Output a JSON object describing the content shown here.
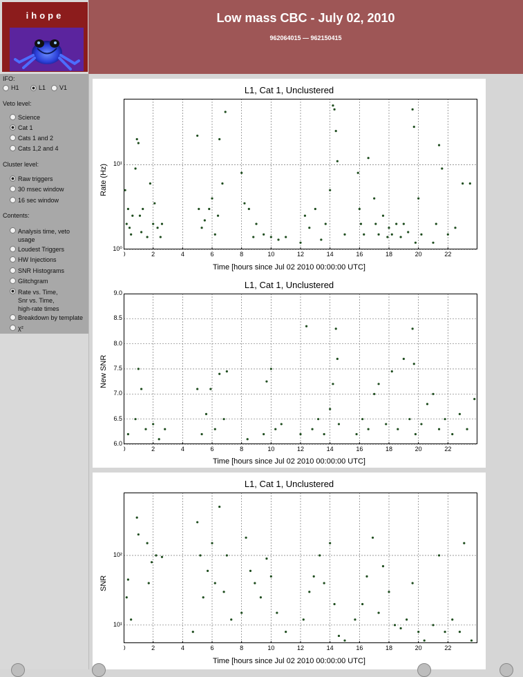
{
  "logo": {
    "title": "ihope"
  },
  "header": {
    "title": "Low mass CBC - July 02, 2010",
    "gps_range": "962064015 — 962150415"
  },
  "sidebar": {
    "ifo_label": "IFO:",
    "ifos": [
      {
        "label": "H1",
        "selected": false
      },
      {
        "label": "L1",
        "selected": true
      },
      {
        "label": "V1",
        "selected": false
      }
    ],
    "veto_label": "Veto level:",
    "veto": [
      {
        "label": "Science",
        "selected": false
      },
      {
        "label": "Cat 1",
        "selected": true
      },
      {
        "label": "Cats 1 and 2",
        "selected": false
      },
      {
        "label": "Cats 1,2 and 4",
        "selected": false
      }
    ],
    "cluster_label": "Cluster level:",
    "cluster": [
      {
        "label": "Raw triggers",
        "selected": true
      },
      {
        "label": "30 msec window",
        "selected": false
      },
      {
        "label": "16 sec window",
        "selected": false
      }
    ],
    "contents_label": "Contents:",
    "contents": [
      {
        "lines": [
          "Analysis time, veto",
          "usage"
        ],
        "selected": false
      },
      {
        "lines": [
          "Loudest Triggers"
        ],
        "selected": false
      },
      {
        "lines": [
          "HW Injections"
        ],
        "selected": false
      },
      {
        "lines": [
          "SNR Histograms"
        ],
        "selected": false
      },
      {
        "lines": [
          "Glitchgram"
        ],
        "selected": false
      },
      {
        "lines": [
          "Rate vs. Time,",
          "Snr vs. Time,",
          "high-rate times"
        ],
        "selected": true
      },
      {
        "lines": [
          "Breakdown by template"
        ],
        "selected": false
      },
      {
        "lines": [
          "χ²"
        ],
        "selected": false
      }
    ]
  },
  "chart_data": [
    {
      "type": "scatter",
      "title": "L1, Cat 1, Unclustered",
      "xlabel": "Time [hours since Jul 02 2010 00:00:00 UTC]",
      "ylabel": "Rate (Hz)",
      "xlim": [
        0,
        24
      ],
      "ylim": [
        1,
        60
      ],
      "yscale": "log",
      "xticks": [
        "0",
        "2",
        "4",
        "6",
        "8",
        "10",
        "12",
        "14",
        "16",
        "18",
        "20",
        "22"
      ],
      "yticks": [
        "10⁰",
        "10¹"
      ],
      "grid": true,
      "marker_color": "#1f4d1f",
      "series": [
        {
          "x": [
            0.1,
            0.2,
            0.3,
            0.4,
            0.5,
            0.6,
            0.8,
            0.9,
            1.0,
            1.1,
            1.2,
            1.3,
            1.6,
            1.8,
            2.0,
            2.1,
            2.3,
            2.5,
            2.6,
            5.0,
            5.1,
            5.3,
            5.5,
            5.8,
            6.0,
            6.2,
            6.4,
            6.5,
            6.7,
            6.9,
            8.0,
            8.2,
            8.5,
            8.8,
            9.0,
            9.5,
            10.0,
            10.5,
            11.0,
            12.0,
            12.3,
            12.6,
            13.0,
            13.4,
            13.7,
            14.0,
            14.2,
            14.3,
            14.4,
            14.5,
            15.0,
            15.9,
            16.0,
            16.1,
            16.3,
            16.6,
            17.0,
            17.1,
            17.3,
            17.6,
            17.9,
            18.0,
            18.2,
            18.5,
            18.8,
            19.0,
            19.3,
            19.6,
            19.7,
            19.8,
            20.0,
            20.2,
            21.0,
            21.2,
            21.4,
            21.6,
            22.0,
            22.5,
            23.0,
            23.5
          ],
          "y": [
            5,
            2,
            3,
            1.8,
            1.5,
            2.5,
            9,
            20,
            18,
            2.5,
            1.6,
            3,
            1.4,
            6,
            2,
            3.5,
            1.8,
            1.4,
            2,
            22,
            3,
            1.8,
            2.2,
            3,
            4,
            1.5,
            2.5,
            20,
            6,
            42,
            8,
            3.5,
            3,
            1.4,
            2,
            1.5,
            1.4,
            1.3,
            1.4,
            1.2,
            2.5,
            1.8,
            3,
            1.3,
            2,
            5,
            50,
            45,
            25,
            11,
            1.5,
            8,
            3,
            2,
            1.5,
            12,
            4,
            2,
            1.5,
            2.5,
            1.4,
            1.8,
            1.5,
            2,
            1.4,
            2,
            1.6,
            45,
            28,
            1.2,
            4,
            1.5,
            1.2,
            2,
            17,
            9,
            1.5,
            1.8,
            6,
            6
          ]
        }
      ]
    },
    {
      "type": "scatter",
      "title": "L1, Cat 1, Unclustered",
      "xlabel": "Time [hours since Jul 02 2010 00:00:00 UTC]",
      "ylabel": "New SNR",
      "xlim": [
        0,
        24
      ],
      "ylim": [
        6.0,
        9.0
      ],
      "xticks": [
        "0",
        "2",
        "4",
        "6",
        "8",
        "10",
        "12",
        "14",
        "16",
        "18",
        "20",
        "22"
      ],
      "yticks": [
        "6.0",
        "6.5",
        "7.0",
        "7.5",
        "8.0",
        "8.5",
        "9.0"
      ],
      "grid": true,
      "marker_color": "#1f4d1f",
      "series": [
        {
          "x": [
            0.3,
            0.8,
            1.0,
            1.2,
            1.5,
            2.0,
            2.4,
            2.8,
            5.0,
            5.3,
            5.6,
            5.9,
            6.2,
            6.5,
            6.8,
            7.0,
            8.4,
            9.5,
            9.7,
            10.0,
            10.3,
            10.7,
            12.0,
            12.4,
            12.8,
            13.2,
            13.6,
            14.0,
            14.2,
            14.4,
            14.5,
            14.6,
            15.8,
            16.2,
            16.6,
            17.0,
            17.3,
            17.8,
            18.2,
            18.6,
            19.0,
            19.4,
            19.6,
            19.7,
            19.8,
            20.2,
            20.6,
            21.0,
            21.4,
            21.8,
            22.3,
            22.8,
            23.3,
            23.8
          ],
          "y": [
            6.2,
            6.5,
            7.5,
            7.1,
            6.3,
            6.4,
            6.1,
            6.3,
            7.1,
            6.2,
            6.6,
            7.1,
            6.3,
            7.4,
            6.5,
            7.45,
            6.1,
            6.2,
            7.25,
            7.5,
            6.3,
            6.4,
            6.2,
            8.35,
            6.3,
            6.5,
            6.2,
            6.7,
            7.2,
            8.3,
            7.7,
            6.4,
            6.2,
            6.5,
            6.3,
            7.0,
            7.2,
            6.4,
            7.45,
            6.3,
            7.7,
            6.5,
            8.3,
            7.6,
            6.2,
            6.4,
            6.8,
            7.0,
            6.3,
            6.5,
            6.2,
            6.6,
            6.3,
            6.9
          ]
        }
      ]
    },
    {
      "type": "scatter",
      "title": "L1, Cat 1, Unclustered",
      "xlabel": "Time [hours since Jul 02 2010 00:00:00 UTC]",
      "ylabel": "SNR",
      "xlim": [
        0,
        24
      ],
      "ylim": [
        5.5,
        800
      ],
      "yscale": "log",
      "xticks": [
        "0",
        "2",
        "4",
        "6",
        "8",
        "10",
        "12",
        "14",
        "16",
        "18",
        "20",
        "22"
      ],
      "yticks": [
        "10¹",
        "10²"
      ],
      "grid": true,
      "marker_color": "#1f4d1f",
      "series": [
        {
          "x": [
            0.2,
            0.3,
            0.5,
            0.9,
            1.0,
            1.6,
            1.7,
            1.9,
            2.2,
            2.6,
            4.7,
            5.0,
            5.2,
            5.4,
            5.7,
            6.0,
            6.2,
            6.5,
            6.8,
            7.0,
            7.3,
            8.0,
            8.3,
            8.6,
            8.9,
            9.3,
            9.7,
            10.0,
            10.4,
            11.0,
            12.2,
            12.6,
            12.9,
            13.3,
            13.6,
            14.0,
            14.3,
            14.6,
            15.0,
            15.7,
            16.2,
            16.5,
            16.9,
            17.3,
            17.6,
            18.0,
            18.4,
            18.8,
            19.2,
            19.6,
            20.0,
            20.4,
            21.0,
            21.4,
            21.8,
            22.3,
            22.8,
            23.1,
            23.6
          ],
          "y": [
            25,
            45,
            12,
            350,
            200,
            150,
            40,
            80,
            100,
            95,
            8,
            300,
            100,
            25,
            60,
            150,
            40,
            500,
            30,
            100,
            12,
            15,
            180,
            60,
            40,
            25,
            90,
            50,
            15,
            8,
            12,
            30,
            50,
            100,
            40,
            150,
            20,
            7,
            6,
            12,
            20,
            50,
            180,
            15,
            70,
            30,
            10,
            9,
            12,
            40,
            8,
            6,
            10,
            100,
            8,
            12,
            8,
            150,
            6
          ]
        }
      ]
    }
  ]
}
